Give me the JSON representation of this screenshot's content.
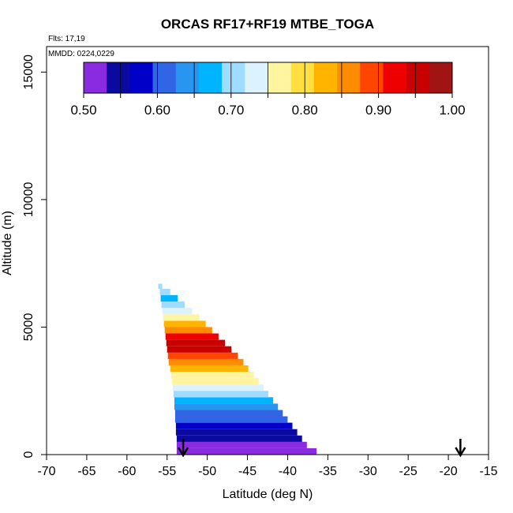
{
  "chart_data": {
    "type": "heatmap",
    "title": "ORCAS RF17+RF19 MTBE_TOGA",
    "xlabel": "Latitude (deg N)",
    "ylabel": "Altitude (m)",
    "xlim": [
      -70,
      -15
    ],
    "ylim": [
      0,
      16000
    ],
    "x_ticks": [
      "-70",
      "-65",
      "-60",
      "-55",
      "-50",
      "-45",
      "-40",
      "-35",
      "-30",
      "-25",
      "-20",
      "-15"
    ],
    "y_ticks": [
      "0",
      "5000",
      "10000",
      "15000"
    ],
    "flights_label": "Flts: 17,19",
    "dates_label": "MMDD: 0224,0229",
    "colorbar": {
      "min": 0.5,
      "max": 1.0,
      "tick_labels": [
        "0.50",
        "0.60",
        "0.70",
        "0.80",
        "0.90",
        "1.00"
      ],
      "colors": [
        "#8a2be2",
        "#0a0aa0",
        "#0000c8",
        "#3264e6",
        "#2896f0",
        "#00b4ff",
        "#a0dcff",
        "#ddf2ff",
        "#fff5a0",
        "#ffe040",
        "#ffb400",
        "#ff8c00",
        "#ff4500",
        "#ee0000",
        "#c80000",
        "#a01414"
      ]
    },
    "layers": [
      {
        "alt_min": 0,
        "alt_max": 250,
        "lat_west": -53.8,
        "lat_east": -36.4,
        "value": 0.505
      },
      {
        "alt_min": 250,
        "alt_max": 500,
        "lat_west": -53.8,
        "lat_east": -37.6,
        "value": 0.52
      },
      {
        "alt_min": 500,
        "alt_max": 750,
        "lat_west": -53.8,
        "lat_east": -38.2,
        "value": 0.545
      },
      {
        "alt_min": 750,
        "alt_max": 1000,
        "lat_west": -53.9,
        "lat_east": -38.8,
        "value": 0.56
      },
      {
        "alt_min": 1000,
        "alt_max": 1250,
        "lat_west": -53.9,
        "lat_east": -39.4,
        "value": 0.58
      },
      {
        "alt_min": 1250,
        "alt_max": 1500,
        "lat_west": -54.0,
        "lat_east": -40.0,
        "value": 0.6
      },
      {
        "alt_min": 1500,
        "alt_max": 1750,
        "lat_west": -54.0,
        "lat_east": -40.6,
        "value": 0.62
      },
      {
        "alt_min": 1750,
        "alt_max": 2000,
        "lat_west": -54.1,
        "lat_east": -41.2,
        "value": 0.64
      },
      {
        "alt_min": 2000,
        "alt_max": 2250,
        "lat_west": -54.1,
        "lat_east": -41.8,
        "value": 0.665
      },
      {
        "alt_min": 2250,
        "alt_max": 2500,
        "lat_west": -54.2,
        "lat_east": -42.4,
        "value": 0.69
      },
      {
        "alt_min": 2500,
        "alt_max": 2750,
        "lat_west": -54.3,
        "lat_east": -43.0,
        "value": 0.72
      },
      {
        "alt_min": 2750,
        "alt_max": 3000,
        "lat_west": -54.4,
        "lat_east": -43.6,
        "value": 0.75
      },
      {
        "alt_min": 3000,
        "alt_max": 3250,
        "lat_west": -54.5,
        "lat_east": -44.2,
        "value": 0.78
      },
      {
        "alt_min": 3250,
        "alt_max": 3500,
        "lat_west": -54.6,
        "lat_east": -44.9,
        "value": 0.82
      },
      {
        "alt_min": 3500,
        "alt_max": 3750,
        "lat_west": -54.8,
        "lat_east": -45.5,
        "value": 0.86
      },
      {
        "alt_min": 3750,
        "alt_max": 4000,
        "lat_west": -54.9,
        "lat_east": -46.2,
        "value": 0.9
      },
      {
        "alt_min": 4000,
        "alt_max": 4250,
        "lat_west": -55.0,
        "lat_east": -47.0,
        "value": 0.94
      },
      {
        "alt_min": 4250,
        "alt_max": 4500,
        "lat_west": -55.1,
        "lat_east": -47.8,
        "value": 0.96
      },
      {
        "alt_min": 4500,
        "alt_max": 4750,
        "lat_west": -55.2,
        "lat_east": -48.6,
        "value": 0.92
      },
      {
        "alt_min": 4750,
        "alt_max": 5000,
        "lat_west": -55.3,
        "lat_east": -49.4,
        "value": 0.87
      },
      {
        "alt_min": 5000,
        "alt_max": 5250,
        "lat_west": -55.4,
        "lat_east": -50.2,
        "value": 0.82
      },
      {
        "alt_min": 5250,
        "alt_max": 5500,
        "lat_west": -55.5,
        "lat_east": -51.0,
        "value": 0.77
      },
      {
        "alt_min": 5500,
        "alt_max": 5750,
        "lat_west": -55.6,
        "lat_east": -51.9,
        "value": 0.73
      },
      {
        "alt_min": 5750,
        "alt_max": 6000,
        "lat_west": -55.7,
        "lat_east": -52.8,
        "value": 0.7
      },
      {
        "alt_min": 6000,
        "alt_max": 6250,
        "lat_west": -55.8,
        "lat_east": -53.7,
        "value": 0.68
      },
      {
        "alt_min": 6250,
        "alt_max": 6500,
        "lat_west": -55.9,
        "lat_east": -54.6,
        "value": 0.69
      },
      {
        "alt_min": 6500,
        "alt_max": 6700,
        "lat_west": -56.1,
        "lat_east": -55.6,
        "value": 0.7
      }
    ],
    "markers": [
      {
        "lat": -53.0,
        "label": "arrow"
      },
      {
        "lat": -18.5,
        "label": "arrow"
      }
    ]
  }
}
